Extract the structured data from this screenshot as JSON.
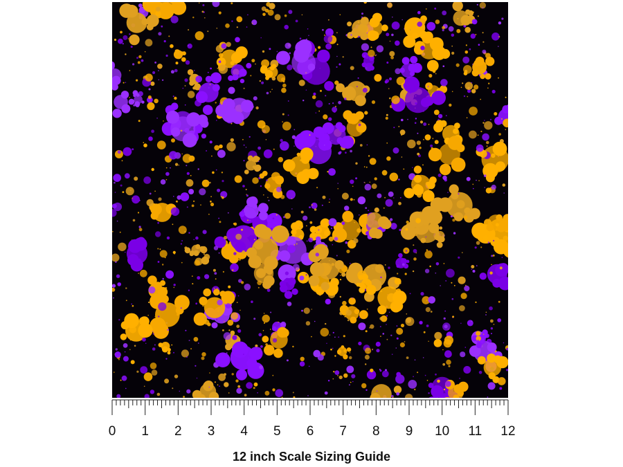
{
  "ruler": {
    "ticks": [
      0,
      1,
      2,
      3,
      4,
      5,
      6,
      7,
      8,
      9,
      10,
      11,
      12
    ]
  },
  "caption": "12 inch Scale Sizing Guide"
}
